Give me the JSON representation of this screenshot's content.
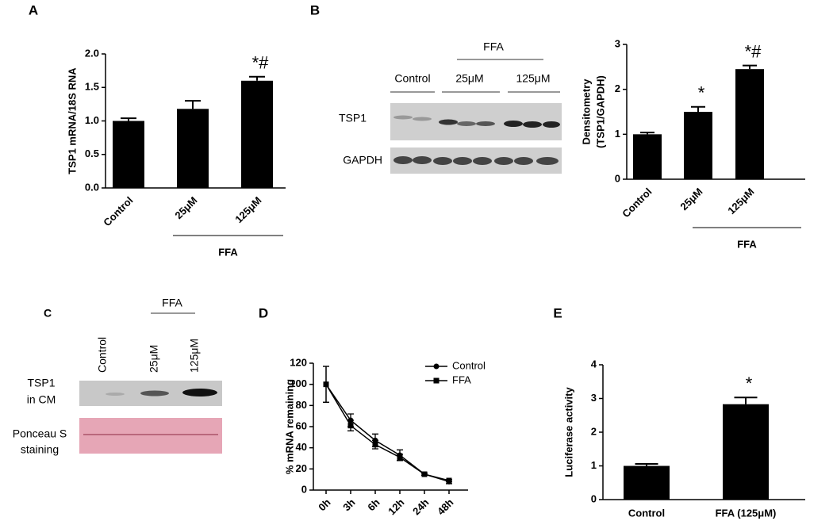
{
  "chart_data": [
    {
      "type": "bar",
      "panel": "A",
      "ylabel": [
        "TSP1 mRNA/18S RNA"
      ],
      "categories": [
        "Control",
        "25μM",
        "125μM"
      ],
      "values": [
        1.0,
        1.18,
        1.6
      ],
      "errors": [
        0.04,
        0.12,
        0.06
      ],
      "ylim": [
        0,
        2
      ],
      "yticks": [
        {
          "value": 0,
          "label": "0.0"
        },
        0.5,
        {
          "value": 1,
          "label": "1.0"
        },
        1.5,
        {
          "value": 2,
          "label": "2.0"
        }
      ],
      "annotations": [
        null,
        null,
        "*#"
      ],
      "group_label": "FFA",
      "color": "#000000"
    },
    {
      "type": "bar",
      "panel": "B",
      "ylabel": [
        "Densitometry",
        "(TSP1/GAPDH)"
      ],
      "categories": [
        "Control",
        "25μM",
        "125μM"
      ],
      "values": [
        1.0,
        1.5,
        2.45
      ],
      "errors": [
        0.04,
        0.11,
        0.08
      ],
      "ylim": [
        0,
        3
      ],
      "yticks": [
        0,
        1,
        2,
        3
      ],
      "annotations": [
        null,
        "*",
        "*#"
      ],
      "group_label": "FFA",
      "color": "#000000"
    },
    {
      "type": "line",
      "panel": "D",
      "ylabel": [
        "% mRNA remaining"
      ],
      "categories": [
        "0h",
        "3h",
        "6h",
        "12h",
        "24h",
        "48h"
      ],
      "series": [
        {
          "name": "Control",
          "color": "#000000",
          "values": [
            100,
            66,
            47,
            33,
            15,
            8
          ],
          "errors": [
            17,
            6,
            6,
            5,
            1,
            2
          ]
        },
        {
          "name": "FFA",
          "color": "#000000",
          "values": [
            100,
            61,
            43,
            31,
            15,
            9
          ],
          "errors": [
            17,
            5,
            4,
            3,
            1,
            1
          ]
        }
      ],
      "ylim": [
        0,
        120
      ],
      "yticks": [
        0,
        20,
        40,
        60,
        80,
        100,
        120
      ]
    },
    {
      "type": "bar",
      "panel": "E",
      "ylabel": [
        "Luciferase activity"
      ],
      "categories": [
        "Control",
        "FFA (125μM)"
      ],
      "values": [
        1.0,
        2.83
      ],
      "errors": [
        0.06,
        0.2
      ],
      "ylim": [
        0,
        4
      ],
      "yticks": [
        0,
        1,
        2,
        3,
        4
      ],
      "annotations": [
        null,
        "*"
      ],
      "color": "#000000"
    }
  ],
  "blot_b": {
    "group_label": "FFA",
    "lanes": [
      "Control",
      "25μM",
      "125μM"
    ],
    "rows": [
      "TSP1",
      "GAPDH"
    ]
  },
  "blot_c": {
    "panel": "C",
    "group_label": "FFA",
    "lanes": [
      "Control",
      "25μM",
      "125μM"
    ],
    "rows": [
      [
        "TSP1",
        "in CM"
      ],
      [
        "Ponceau S",
        "staining"
      ]
    ]
  }
}
